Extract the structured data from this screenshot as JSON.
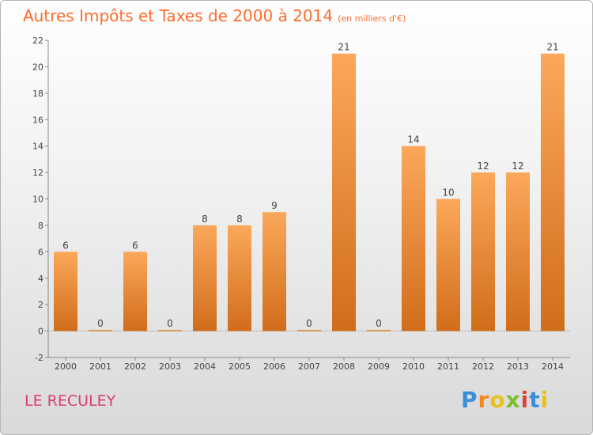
{
  "title": "Autres Impôts et Taxes de 2000 à 2014",
  "subtitle": "(en milliers d'€)",
  "commune": "LE RECULEY",
  "logo": "Proxiti",
  "colors": {
    "bar_light": "#fba85a",
    "bar_dark": "#d16d1a",
    "title": "#ff6a2c",
    "commune": "#d93d6a"
  },
  "chart_data": {
    "type": "bar",
    "categories": [
      "2000",
      "2001",
      "2002",
      "2003",
      "2004",
      "2005",
      "2006",
      "2007",
      "2008",
      "2009",
      "2010",
      "2011",
      "2012",
      "2013",
      "2014"
    ],
    "values": [
      6,
      0,
      6,
      0,
      8,
      8,
      9,
      0,
      21,
      0,
      14,
      10,
      12,
      12,
      21
    ],
    "ylim": [
      -2,
      22
    ],
    "yticks": [
      -2,
      0,
      2,
      4,
      6,
      8,
      10,
      12,
      14,
      16,
      18,
      20,
      22
    ],
    "grid": false,
    "legend": "none"
  }
}
